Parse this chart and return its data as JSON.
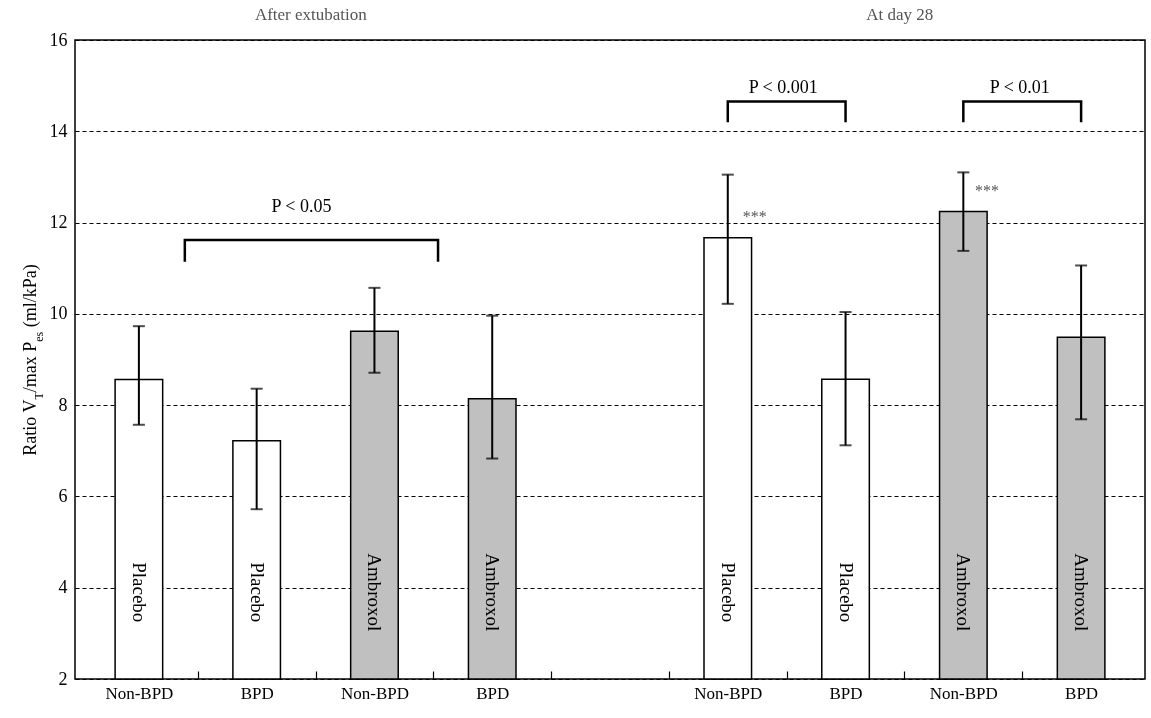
{
  "chart_data": {
    "type": "bar",
    "categories": [
      "Non-BPD",
      "BPD",
      "Non-BPD",
      "BPD",
      null,
      "Non-BPD",
      "BPD",
      "Non-BPD",
      "BPD"
    ],
    "series": [
      {
        "name": "Placebo",
        "color": "#ffffff",
        "values": [
          8.56,
          7.22,
          null,
          null,
          null,
          11.67,
          8.57,
          null,
          null
        ],
        "errors": [
          [
            7.57,
            9.73
          ],
          [
            5.72,
            8.36
          ],
          null,
          null,
          null,
          [
            10.22,
            13.05
          ],
          [
            7.12,
            10.04
          ],
          null,
          null
        ]
      },
      {
        "name": "Ambroxol",
        "color": "#c0c0c0",
        "values": [
          null,
          null,
          9.62,
          8.14,
          null,
          null,
          null,
          12.24,
          9.49
        ],
        "errors": [
          null,
          null,
          [
            8.71,
            10.57
          ],
          [
            6.83,
            9.96
          ],
          null,
          null,
          null,
          [
            11.38,
            13.1
          ],
          [
            7.69,
            11.06
          ]
        ]
      }
    ],
    "ylabel": "Ratio V$_{T}$/max P$_{es}$ (ml/kPa)",
    "ylim": [
      2,
      16
    ],
    "yticks": [
      2,
      4,
      6,
      8,
      10,
      12,
      14,
      16
    ],
    "grid": "y",
    "legend": false,
    "annotations": [
      "After extubation",
      "At day 28",
      "P < 0.05",
      "P < 0.001",
      "P < 0.01",
      "***",
      "***"
    ]
  }
}
